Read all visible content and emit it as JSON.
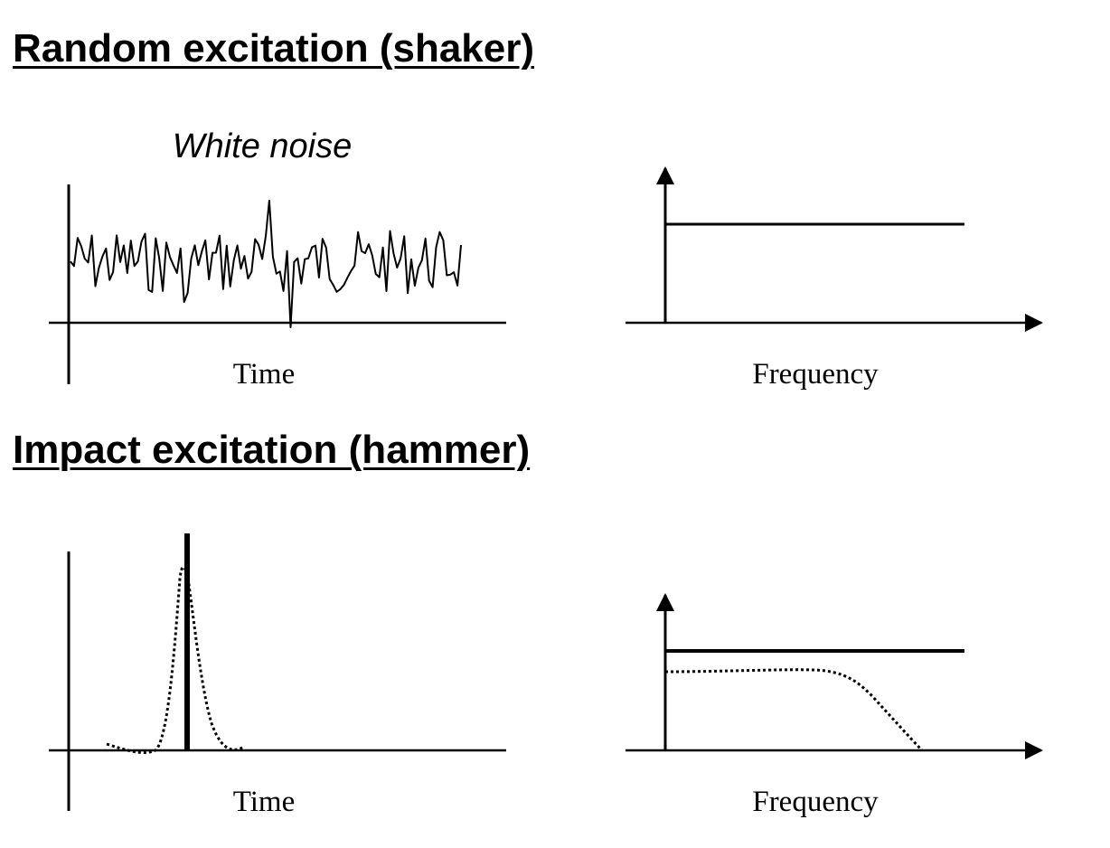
{
  "sections": [
    {
      "heading": "Random excitation (shaker)",
      "time_panel": {
        "annotation": "White noise",
        "xlabel": "Time",
        "signal": "white-noise-trace"
      },
      "freq_panel": {
        "xlabel": "Frequency",
        "spectrum": "flat-constant-level"
      }
    },
    {
      "heading": "Impact excitation (hammer)",
      "time_panel": {
        "xlabel": "Time",
        "signals": [
          "ideal-impulse-solid",
          "real-pulse-dotted"
        ]
      },
      "freq_panel": {
        "xlabel": "Frequency",
        "spectra": [
          "flat-ideal-solid",
          "rolloff-dotted"
        ]
      }
    }
  ]
}
